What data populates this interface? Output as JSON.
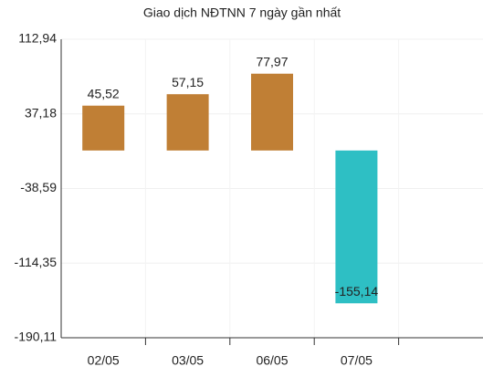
{
  "chart_data": {
    "type": "bar",
    "title": "Giao dịch NĐTNN 7 ngày gần nhất",
    "categories": [
      "02/05",
      "03/05",
      "06/05",
      "07/05",
      null
    ],
    "values": [
      45.52,
      57.15,
      77.97,
      -155.14,
      null
    ],
    "value_labels": [
      "45,52",
      "57,15",
      "77,97",
      "-155,14",
      null
    ],
    "color": "#c07f35",
    "negative_color": "#2ebfc4",
    "ylim": [
      -190.11,
      112.94
    ],
    "yticks": [
      {
        "value": 112.94,
        "label": "112,94"
      },
      {
        "value": 37.18,
        "label": "37,18"
      },
      {
        "value": -38.59,
        "label": "-38,59"
      },
      {
        "value": -114.35,
        "label": "-114,35"
      },
      {
        "value": -190.11,
        "label": "-190,11"
      }
    ],
    "grid": true
  }
}
